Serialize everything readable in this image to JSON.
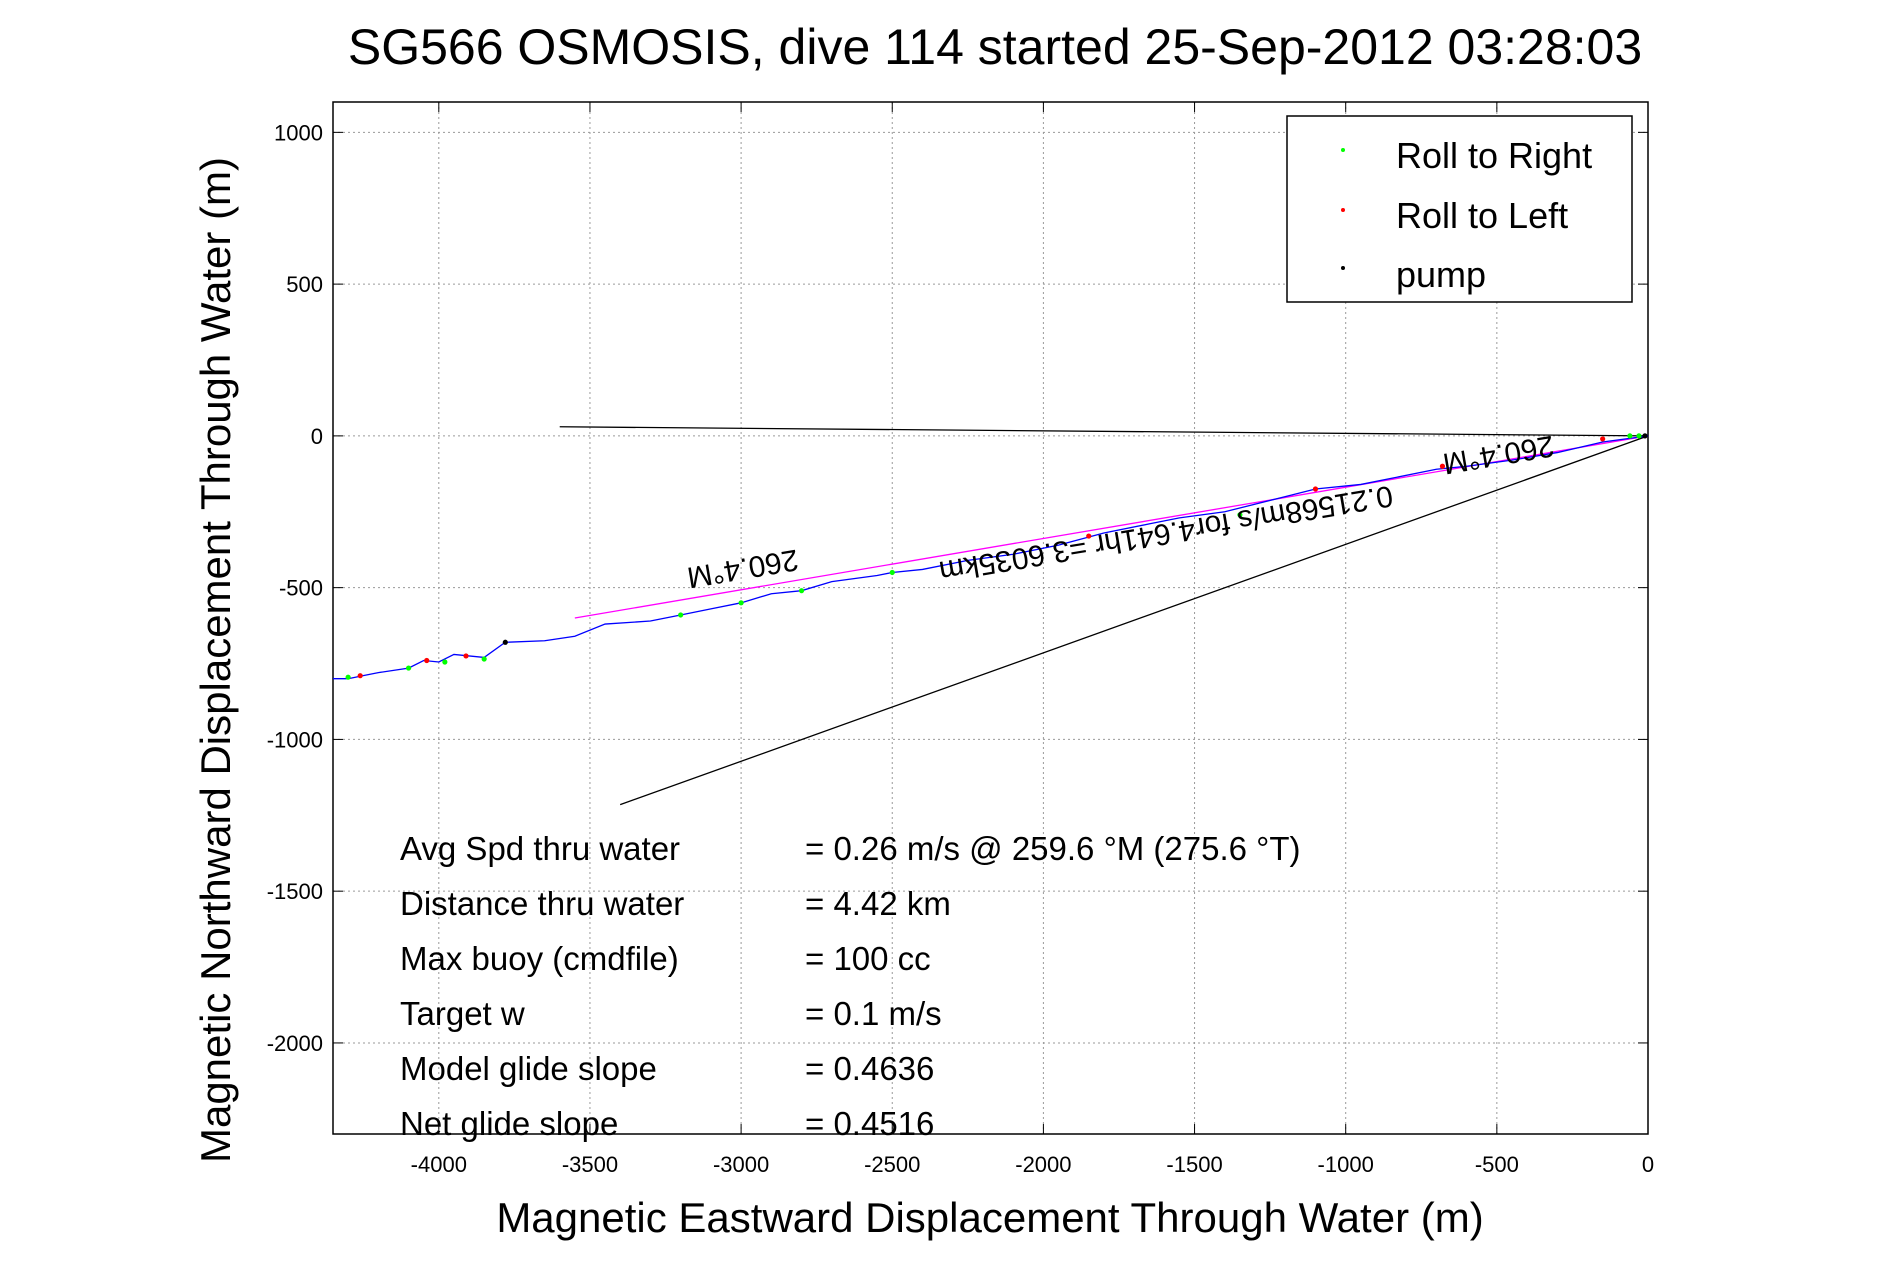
{
  "chart_data": {
    "type": "scatter",
    "title": "SG566 OSMOSIS, dive 114 started 25-Sep-2012 03:28:03",
    "xlabel": "Magnetic Eastward Displacement Through Water (m)",
    "ylabel": "Magnetic Northward Displacement Through Water (m)",
    "xlim": [
      -4350,
      0
    ],
    "ylim": [
      -2300,
      1100
    ],
    "xticks": [
      -4000,
      -3500,
      -3000,
      -2500,
      -2000,
      -1500,
      -1000,
      -500,
      0
    ],
    "yticks": [
      1000,
      500,
      0,
      -500,
      -1000,
      -1500,
      -2000
    ],
    "grid": true,
    "legend": {
      "position": "top-right",
      "entries": [
        {
          "label": "Roll to Right",
          "color": "#00ff00"
        },
        {
          "label": "Roll to Left",
          "color": "#ff0000"
        },
        {
          "label": "pump",
          "color": "#000000"
        }
      ]
    },
    "track": {
      "color": "#0000ff",
      "points": [
        [
          0,
          0
        ],
        [
          -150,
          -20
        ],
        [
          -300,
          -55
        ],
        [
          -450,
          -80
        ],
        [
          -600,
          -100
        ],
        [
          -700,
          -110
        ],
        [
          -850,
          -140
        ],
        [
          -950,
          -160
        ],
        [
          -1100,
          -175
        ],
        [
          -1200,
          -200
        ],
        [
          -1400,
          -250
        ],
        [
          -1550,
          -270
        ],
        [
          -1650,
          -290
        ],
        [
          -1800,
          -320
        ],
        [
          -1950,
          -360
        ],
        [
          -2100,
          -390
        ],
        [
          -2250,
          -410
        ],
        [
          -2400,
          -440
        ],
        [
          -2500,
          -450
        ],
        [
          -2550,
          -460
        ],
        [
          -2700,
          -480
        ],
        [
          -2800,
          -510
        ],
        [
          -2900,
          -520
        ],
        [
          -3000,
          -550
        ],
        [
          -3100,
          -570
        ],
        [
          -3200,
          -590
        ],
        [
          -3300,
          -610
        ],
        [
          -3450,
          -620
        ],
        [
          -3550,
          -660
        ],
        [
          -3650,
          -675
        ],
        [
          -3780,
          -680
        ],
        [
          -3850,
          -730
        ],
        [
          -3950,
          -720
        ],
        [
          -4000,
          -745
        ],
        [
          -4050,
          -740
        ],
        [
          -4100,
          -765
        ],
        [
          -4200,
          -780
        ],
        [
          -4250,
          -790
        ],
        [
          -4300,
          -800
        ],
        [
          -4350,
          -800
        ]
      ]
    },
    "roll_right_points": [
      [
        -30,
        0
      ],
      [
        -60,
        0
      ],
      [
        -1350,
        -260
      ],
      [
        -2500,
        -450
      ],
      [
        -2800,
        -510
      ],
      [
        -3000,
        -550
      ],
      [
        -3200,
        -590
      ],
      [
        -3850,
        -735
      ],
      [
        -3980,
        -745
      ],
      [
        -4100,
        -765
      ],
      [
        -4300,
        -795
      ]
    ],
    "roll_left_points": [
      [
        -150,
        -10
      ],
      [
        -680,
        -100
      ],
      [
        -1100,
        -175
      ],
      [
        -1850,
        -330
      ],
      [
        -3910,
        -725
      ],
      [
        -4040,
        -740
      ],
      [
        -4260,
        -790
      ]
    ],
    "pump_points": [
      [
        -10,
        0
      ],
      [
        -3780,
        -680
      ]
    ],
    "lines": {
      "heading_line": {
        "color": "#ff00ff",
        "points": [
          [
            0,
            0
          ],
          [
            -3550,
            -600
          ]
        ]
      },
      "depth_avg_current": {
        "color": "#000000",
        "points": [
          [
            0,
            0
          ],
          [
            -3600,
            30
          ]
        ]
      },
      "glide_projection": {
        "color": "#000000",
        "points": [
          [
            0,
            0
          ],
          [
            -3400,
            -1215
          ]
        ]
      }
    },
    "rotated_labels": [
      {
        "text": "260.4°M",
        "at": [
          -3000,
          -405
        ]
      },
      {
        "text": "260.4°M",
        "at": [
          -500,
          -30
        ]
      },
      {
        "text": "0.21568m/s for4.641hr =3.6035km",
        "at": [
          -1600,
          -290
        ]
      }
    ],
    "annotations": [
      {
        "label": "Avg Spd thru water",
        "value": "=  0.26 m/s @ 259.6 °M (275.6 °T)"
      },
      {
        "label": "Distance thru water",
        "value": "=  4.42 km"
      },
      {
        "label": "Max buoy (cmdfile)",
        "value": "= 100 cc"
      },
      {
        "label": "Target w",
        "value": "= 0.1 m/s"
      },
      {
        "label": "Model glide slope",
        "value": "= 0.4636"
      },
      {
        "label": "Net glide slope",
        "value": "= 0.4516"
      }
    ]
  }
}
